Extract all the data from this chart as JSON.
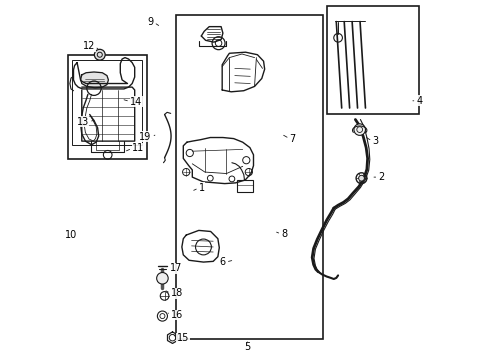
{
  "bg_color": "#ffffff",
  "fig_width": 4.89,
  "fig_height": 3.6,
  "dpi": 100,
  "line_color": "#1a1a1a",
  "text_color": "#000000",
  "font_size": 7.0,
  "font_size_small": 6.0,
  "boxes": {
    "main": [
      0.31,
      0.06,
      0.72,
      0.955
    ],
    "wiper": [
      0.73,
      0.68,
      0.985,
      0.98
    ],
    "reservoir": [
      0.01,
      0.56,
      0.23,
      0.845
    ],
    "filler": [
      0.022,
      0.6,
      0.215,
      0.83
    ]
  },
  "labels": {
    "1": [
      0.37,
      0.485,
      0.345,
      0.47
    ],
    "2": [
      0.868,
      0.51,
      0.848,
      0.51
    ],
    "3": [
      0.848,
      0.61,
      0.83,
      0.625
    ],
    "4": [
      0.975,
      0.718,
      0.96,
      0.718
    ],
    "5": [
      0.505,
      0.04,
      0.505,
      0.06
    ],
    "6": [
      0.45,
      0.275,
      0.478,
      0.278
    ],
    "7": [
      0.618,
      0.618,
      0.598,
      0.63
    ],
    "8": [
      0.598,
      0.355,
      0.578,
      0.362
    ],
    "9": [
      0.248,
      0.935,
      0.268,
      0.922
    ],
    "10": [
      0.002,
      0.348,
      0.02,
      0.348
    ],
    "11": [
      0.185,
      0.588,
      0.162,
      0.578
    ],
    "12": [
      0.088,
      0.868,
      0.1,
      0.855
    ],
    "13": [
      0.072,
      0.665,
      0.095,
      0.67
    ],
    "14": [
      0.178,
      0.718,
      0.155,
      0.725
    ],
    "15": [
      0.308,
      0.065,
      0.298,
      0.08
    ],
    "16": [
      0.29,
      0.128,
      0.285,
      0.142
    ],
    "17": [
      0.288,
      0.258,
      0.288,
      0.272
    ],
    "18": [
      0.292,
      0.188,
      0.285,
      0.198
    ],
    "19": [
      0.242,
      0.622,
      0.255,
      0.63
    ]
  }
}
